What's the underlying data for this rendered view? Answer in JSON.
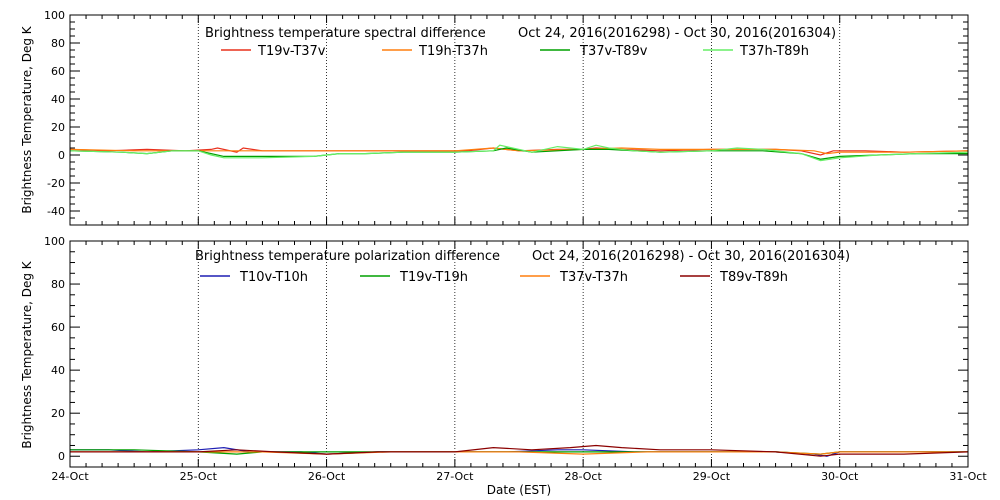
{
  "chart_data": [
    {
      "type": "line",
      "title": "Brightness temperature spectral difference",
      "date_range": "Oct 24, 2016(2016298) - Oct 30, 2016(2016304)",
      "ylabel": "Brightness Temperature, Deg K",
      "ylim": [
        -50,
        100
      ],
      "yticks": [
        -40,
        -20,
        0,
        20,
        40,
        60,
        80,
        100
      ],
      "xlim": [
        "2016-10-24",
        "2016-10-31"
      ],
      "vertical_grid": true,
      "legend_position": "top",
      "series": [
        {
          "name": "T19v-T37v",
          "color": "#e8301c",
          "x": [
            0,
            0.3,
            0.6,
            0.9,
            1.1,
            1.15,
            1.3,
            1.35,
            1.5,
            2.0,
            2.3,
            2.6,
            2.9,
            3.1,
            3.2,
            3.3,
            3.5,
            3.8,
            4.0,
            4.1,
            4.3,
            4.6,
            5.0,
            5.5,
            5.7,
            5.85,
            5.95,
            6.2,
            6.5,
            7.0
          ],
          "values": [
            4,
            3,
            4,
            3,
            4,
            5,
            2,
            5,
            3,
            3,
            3,
            3,
            3,
            3,
            4,
            5,
            3,
            4,
            4,
            5,
            4,
            3,
            4,
            4,
            3,
            0,
            3,
            3,
            2,
            3
          ]
        },
        {
          "name": "T19h-T37h",
          "color": "#ff7f0e",
          "x": [
            0,
            0.5,
            1.0,
            1.5,
            2.0,
            2.5,
            3.0,
            3.3,
            3.5,
            4.0,
            4.3,
            4.6,
            5.0,
            5.5,
            5.8,
            5.9,
            6.0,
            6.5,
            7.0
          ],
          "values": [
            4,
            3,
            3,
            3,
            3,
            3,
            3,
            5,
            3,
            4,
            5,
            4,
            4,
            4,
            3,
            1,
            2,
            2,
            3
          ]
        },
        {
          "name": "T37v-T89v",
          "color": "#00a000",
          "x": [
            0,
            0.4,
            0.6,
            0.8,
            1.0,
            1.1,
            1.2,
            1.5,
            1.9,
            2.1,
            2.3,
            2.6,
            3.0,
            3.3,
            3.4,
            3.6,
            3.8,
            4.0,
            4.2,
            4.4,
            4.6,
            5.0,
            5.4,
            5.7,
            5.85,
            6.0,
            6.3,
            6.6,
            7.0
          ],
          "values": [
            3,
            2,
            1,
            3,
            3,
            1,
            -1,
            -1,
            -1,
            1,
            1,
            2,
            2,
            3,
            5,
            2,
            3,
            4,
            4,
            3,
            2,
            3,
            3,
            1,
            -3,
            -1,
            0,
            1,
            1
          ]
        },
        {
          "name": "T37h-T89h",
          "color": "#66ee66",
          "x": [
            0,
            0.4,
            0.6,
            0.8,
            1.0,
            1.1,
            1.2,
            1.5,
            1.9,
            2.1,
            2.3,
            2.6,
            3.0,
            3.3,
            3.35,
            3.6,
            3.8,
            4.0,
            4.1,
            4.2,
            4.4,
            4.6,
            5.0,
            5.2,
            5.4,
            5.7,
            5.85,
            6.0,
            6.3,
            6.6,
            7.0
          ],
          "values": [
            3,
            2,
            1,
            3,
            3,
            0,
            -2,
            -2,
            -1,
            1,
            1,
            2,
            2,
            3,
            7,
            2,
            6,
            4,
            7,
            5,
            3,
            2,
            3,
            5,
            4,
            1,
            -4,
            -2,
            0,
            1,
            2
          ]
        }
      ]
    },
    {
      "type": "line",
      "title": "Brightness temperature polarization difference",
      "date_range": "Oct 24, 2016(2016298) - Oct 30, 2016(2016304)",
      "xlabel": "Date (EST)",
      "ylabel": "Brightness Temperature, Deg K",
      "ylim": [
        -5,
        100
      ],
      "yticks": [
        0,
        20,
        40,
        60,
        80,
        100
      ],
      "xlim": [
        "2016-10-24",
        "2016-10-31"
      ],
      "xtick_labels": [
        "24-Oct",
        "25-Oct",
        "26-Oct",
        "27-Oct",
        "28-Oct",
        "29-Oct",
        "30-Oct",
        "31-Oct"
      ],
      "vertical_grid": true,
      "legend_position": "top",
      "series": [
        {
          "name": "T10v-T10h",
          "color": "#1f1fb4",
          "x": [
            0,
            0.3,
            0.6,
            1.0,
            1.2,
            1.4,
            1.8,
            2.0,
            2.4,
            3.0,
            3.4,
            3.8,
            4.0,
            4.4,
            5.0,
            5.5,
            5.8,
            5.9,
            6.0,
            6.5,
            7.0
          ],
          "values": [
            3,
            3,
            2,
            3,
            4,
            2,
            2,
            1,
            2,
            2,
            2,
            3,
            3,
            2,
            2,
            2,
            1,
            0,
            2,
            2,
            2
          ]
        },
        {
          "name": "T19v-T19h",
          "color": "#00a000",
          "x": [
            0,
            0.5,
            1.0,
            1.3,
            1.5,
            2.0,
            2.5,
            3.0,
            3.5,
            4.0,
            4.5,
            5.0,
            5.5,
            5.85,
            6.0,
            6.5,
            7.0
          ],
          "values": [
            3,
            3,
            2,
            1,
            2,
            2,
            2,
            2,
            2,
            2,
            2,
            2,
            2,
            1,
            2,
            2,
            2
          ]
        },
        {
          "name": "T37v-T37h",
          "color": "#ff7f0e",
          "x": [
            0,
            0.5,
            1.0,
            1.5,
            2.0,
            2.5,
            3.0,
            3.5,
            4.0,
            4.5,
            5.0,
            5.5,
            5.85,
            6.0,
            6.5,
            7.0
          ],
          "values": [
            2,
            2,
            2,
            2,
            1,
            2,
            2,
            2,
            1,
            2,
            2,
            2,
            1,
            2,
            2,
            2
          ]
        },
        {
          "name": "T89v-T89h",
          "color": "#8b0000",
          "x": [
            0,
            0.5,
            1.0,
            1.3,
            1.6,
            2.0,
            2.4,
            3.0,
            3.3,
            3.6,
            3.9,
            4.1,
            4.3,
            4.6,
            5.0,
            5.5,
            5.85,
            6.0,
            6.5,
            7.0
          ],
          "values": [
            2,
            2,
            2,
            3,
            2,
            1,
            2,
            2,
            4,
            3,
            4,
            5,
            4,
            3,
            3,
            2,
            0,
            1,
            1,
            2
          ]
        }
      ]
    }
  ]
}
